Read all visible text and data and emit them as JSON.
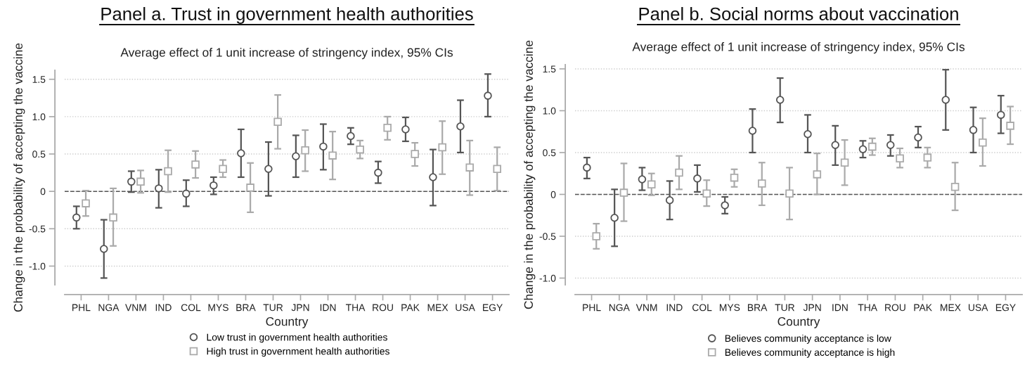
{
  "chart_data": [
    {
      "type": "scatter",
      "title": "Panel a. Trust in government health authorities",
      "subtitle": "Average effect of 1 unit increase of stringency index, 95% CIs",
      "xlabel": "Country",
      "ylabel": "Change in the probability of accepting the vaccine",
      "categories": [
        "PHL",
        "NGA",
        "VNM",
        "IND",
        "COL",
        "MYS",
        "BRA",
        "TUR",
        "JPN",
        "IDN",
        "THA",
        "ROU",
        "PAK",
        "MEX",
        "USA",
        "EGY"
      ],
      "ylim": [
        -1.25,
        1.62
      ],
      "yticks": [
        {
          "value": -1.0,
          "label": "-1.0"
        },
        {
          "value": -0.5,
          "label": "-0.5"
        },
        0,
        {
          "value": 0.5,
          "label": "0.5"
        },
        {
          "value": 1.0,
          "label": "1.0"
        },
        {
          "value": 1.5,
          "label": "1.5"
        }
      ],
      "grid": "y",
      "legend": "bottom",
      "ref_lines": [
        {
          "axis": "y",
          "value": 0,
          "line_style": "dashed",
          "color": "#555555"
        }
      ],
      "series": [
        {
          "name": "Low trust in government health authorities",
          "color": "#555555",
          "marker": "circle",
          "values": [
            -0.35,
            -0.77,
            0.13,
            0.04,
            -0.03,
            0.08,
            0.51,
            0.3,
            0.47,
            0.6,
            0.74,
            0.25,
            0.83,
            0.19,
            0.87,
            1.28
          ],
          "errors": [
            [
              -0.5,
              -0.2
            ],
            [
              -1.16,
              -0.38
            ],
            [
              -0.01,
              0.27
            ],
            [
              -0.22,
              0.29
            ],
            [
              -0.2,
              0.15
            ],
            [
              -0.04,
              0.19
            ],
            [
              0.19,
              0.83
            ],
            [
              -0.06,
              0.66
            ],
            [
              0.19,
              0.75
            ],
            [
              0.29,
              0.9
            ],
            [
              0.63,
              0.85
            ],
            [
              0.11,
              0.4
            ],
            [
              0.67,
              0.99
            ],
            [
              -0.19,
              0.56
            ],
            [
              0.52,
              1.22
            ],
            [
              1.0,
              1.57
            ]
          ]
        },
        {
          "name": "High trust in government health authorities",
          "color": "#aaaaaa",
          "marker": "square",
          "values": [
            -0.16,
            -0.35,
            0.13,
            0.27,
            0.36,
            0.3,
            0.05,
            0.93,
            0.55,
            0.48,
            0.56,
            0.85,
            0.5,
            0.59,
            0.32,
            0.3
          ],
          "errors": [
            [
              -0.33,
              0.01
            ],
            [
              -0.73,
              0.04
            ],
            [
              -0.02,
              0.28
            ],
            [
              -0.01,
              0.55
            ],
            [
              0.18,
              0.54
            ],
            [
              0.19,
              0.42
            ],
            [
              -0.28,
              0.38
            ],
            [
              0.57,
              1.29
            ],
            [
              0.27,
              0.82
            ],
            [
              0.16,
              0.8
            ],
            [
              0.44,
              0.68
            ],
            [
              0.69,
              1.0
            ],
            [
              0.34,
              0.65
            ],
            [
              0.23,
              0.94
            ],
            [
              -0.05,
              0.68
            ],
            [
              0.01,
              0.59
            ]
          ]
        }
      ]
    },
    {
      "type": "scatter",
      "title": "Panel b. Social norms about vaccination",
      "subtitle": "Average effect of 1 unit increase of stringency index, 95% CIs",
      "xlabel": "Country",
      "ylabel": "Change in the probability of accepting the vaccine",
      "categories": [
        "PHL",
        "NGA",
        "VNM",
        "IND",
        "COL",
        "MYS",
        "BRA",
        "TUR",
        "JPN",
        "IDN",
        "THA",
        "ROU",
        "PAK",
        "MEX",
        "USA",
        "EGY"
      ],
      "ylim": [
        -1.08,
        1.55
      ],
      "yticks": [
        {
          "value": -1.0,
          "label": "-1.0"
        },
        {
          "value": -0.5,
          "label": "-0.5"
        },
        0,
        {
          "value": 0.5,
          "label": "0.5"
        },
        {
          "value": 1.0,
          "label": "1.0"
        },
        {
          "value": 1.5,
          "label": "1.5"
        }
      ],
      "grid": "y",
      "legend": "bottom",
      "ref_lines": [
        {
          "axis": "y",
          "value": 0,
          "line_style": "dashed",
          "color": "#555555"
        }
      ],
      "series": [
        {
          "name": "Believes community acceptance is low",
          "color": "#555555",
          "marker": "circle",
          "values": [
            0.32,
            -0.28,
            0.18,
            -0.07,
            0.19,
            -0.13,
            0.76,
            1.13,
            0.72,
            0.59,
            0.54,
            0.59,
            0.68,
            1.13,
            0.77,
            0.95
          ],
          "errors": [
            [
              0.19,
              0.44
            ],
            [
              -0.62,
              0.06
            ],
            [
              0.05,
              0.32
            ],
            [
              -0.3,
              0.16
            ],
            [
              0.03,
              0.35
            ],
            [
              -0.23,
              -0.03
            ],
            [
              0.5,
              1.02
            ],
            [
              0.86,
              1.39
            ],
            [
              0.5,
              0.95
            ],
            [
              0.35,
              0.82
            ],
            [
              0.44,
              0.64
            ],
            [
              0.46,
              0.71
            ],
            [
              0.56,
              0.81
            ],
            [
              0.77,
              1.49
            ],
            [
              0.5,
              1.04
            ],
            [
              0.73,
              1.18
            ]
          ]
        },
        {
          "name": "Believes community acceptance is high",
          "color": "#aaaaaa",
          "marker": "square",
          "values": [
            -0.5,
            0.02,
            0.12,
            0.26,
            0.01,
            0.2,
            0.13,
            0.01,
            0.24,
            0.38,
            0.57,
            0.43,
            0.44,
            0.09,
            0.62,
            0.82
          ],
          "errors": [
            [
              -0.65,
              -0.35
            ],
            [
              -0.32,
              0.37
            ],
            [
              -0.01,
              0.25
            ],
            [
              0.06,
              0.46
            ],
            [
              -0.14,
              0.17
            ],
            [
              0.09,
              0.3
            ],
            [
              -0.13,
              0.38
            ],
            [
              -0.3,
              0.32
            ],
            [
              0.0,
              0.49
            ],
            [
              0.11,
              0.65
            ],
            [
              0.47,
              0.67
            ],
            [
              0.32,
              0.55
            ],
            [
              0.32,
              0.56
            ],
            [
              -0.19,
              0.38
            ],
            [
              0.34,
              0.91
            ],
            [
              0.6,
              1.05
            ]
          ]
        }
      ]
    }
  ]
}
